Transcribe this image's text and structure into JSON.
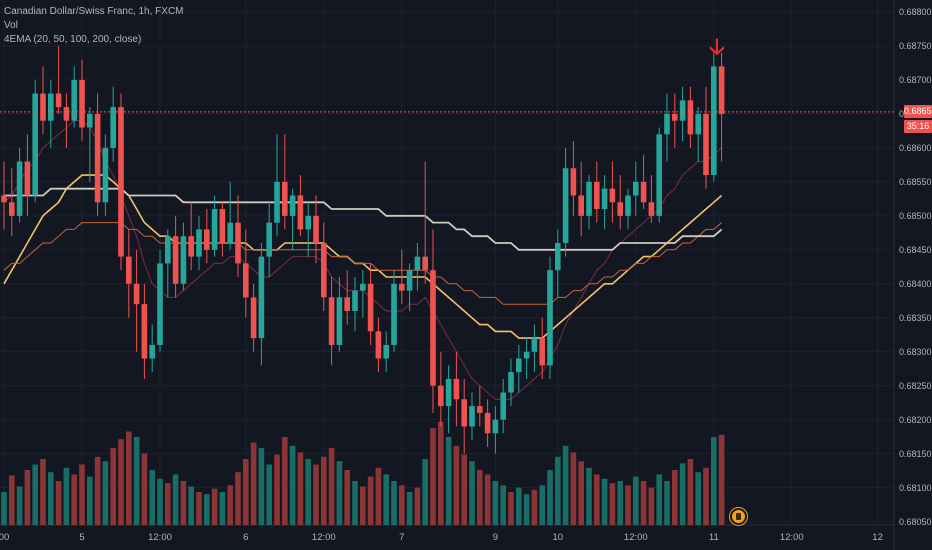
{
  "legend": {
    "symbol": "Canadian Dollar/Swiss Franc, 1h, FXCM",
    "volume": "Vol",
    "indicator": "4EMA (20, 50, 100, 200, close)"
  },
  "last_price_label": "0.68653",
  "countdown_label": "35:16",
  "colors": {
    "background": "#131722",
    "up": "#26a69a",
    "down": "#ef5350",
    "up_volume": "#1b7d73",
    "down_volume": "#a13b3b",
    "ema20": "#7b2c4a",
    "ema50": "#f5c26b",
    "ema100": "#c8643c",
    "ema200": "#cfcbbd",
    "price_line": "#ef5350",
    "arrow": "#ef2b2b",
    "event": "#f7a21b"
  },
  "icons": {
    "signal": "down-arrow-icon",
    "event": "economic-event-icon"
  },
  "chart_data": {
    "type": "candlestick",
    "ylim": [
      0.68045,
      0.688
    ],
    "y_ticks": [
      "0.68800",
      "0.68750",
      "0.68700",
      "0.68650",
      "0.68600",
      "0.68550",
      "0.68500",
      "0.68450",
      "0.68400",
      "0.68350",
      "0.68300",
      "0.68250",
      "0.68200",
      "0.68150",
      "0.68100",
      "0.68050"
    ],
    "x_ticks": [
      {
        "label": "00",
        "index": 0
      },
      {
        "label": "5",
        "index": 10
      },
      {
        "label": "12:00",
        "index": 20
      },
      {
        "label": "6",
        "index": 31
      },
      {
        "label": "12:00",
        "index": 41
      },
      {
        "label": "7",
        "index": 51
      },
      {
        "label": "9",
        "index": 63
      },
      {
        "label": "10",
        "index": 71
      },
      {
        "label": "12:00",
        "index": 81
      },
      {
        "label": "11",
        "index": 91
      },
      {
        "label": "12:00",
        "index": 101
      },
      {
        "label": "12",
        "index": 112
      }
    ],
    "last_price": 0.68653,
    "ohlc": [
      [
        0.6853,
        0.6858,
        0.6848,
        0.6852
      ],
      [
        0.6852,
        0.6857,
        0.6847,
        0.685
      ],
      [
        0.685,
        0.686,
        0.6849,
        0.6858
      ],
      [
        0.6858,
        0.6862,
        0.685,
        0.6853
      ],
      [
        0.6853,
        0.687,
        0.6852,
        0.6868
      ],
      [
        0.6868,
        0.6872,
        0.6862,
        0.6864
      ],
      [
        0.6864,
        0.687,
        0.686,
        0.6868
      ],
      [
        0.6868,
        0.6875,
        0.6865,
        0.6866
      ],
      [
        0.6866,
        0.6868,
        0.686,
        0.6864
      ],
      [
        0.6864,
        0.6872,
        0.6863,
        0.687
      ],
      [
        0.687,
        0.6873,
        0.6861,
        0.6863
      ],
      [
        0.6863,
        0.6866,
        0.6855,
        0.6865
      ],
      [
        0.6865,
        0.6868,
        0.685,
        0.6852
      ],
      [
        0.6852,
        0.6862,
        0.685,
        0.686
      ],
      [
        0.686,
        0.6869,
        0.6858,
        0.6866
      ],
      [
        0.6866,
        0.6868,
        0.6842,
        0.6844
      ],
      [
        0.6844,
        0.6848,
        0.6835,
        0.684
      ],
      [
        0.684,
        0.6845,
        0.683,
        0.6837
      ],
      [
        0.6837,
        0.684,
        0.6826,
        0.6829
      ],
      [
        0.6829,
        0.6834,
        0.6827,
        0.6831
      ],
      [
        0.6831,
        0.6845,
        0.683,
        0.6843
      ],
      [
        0.6843,
        0.6848,
        0.6838,
        0.6847
      ],
      [
        0.6847,
        0.685,
        0.6838,
        0.684
      ],
      [
        0.684,
        0.6849,
        0.6839,
        0.6847
      ],
      [
        0.6847,
        0.6852,
        0.6842,
        0.6844
      ],
      [
        0.6844,
        0.685,
        0.6842,
        0.6848
      ],
      [
        0.6848,
        0.6851,
        0.6843,
        0.6845
      ],
      [
        0.6845,
        0.6853,
        0.6844,
        0.6851
      ],
      [
        0.6851,
        0.6852,
        0.6844,
        0.6846
      ],
      [
        0.6846,
        0.6855,
        0.6845,
        0.6849
      ],
      [
        0.6849,
        0.6853,
        0.6841,
        0.6843
      ],
      [
        0.6843,
        0.6848,
        0.6835,
        0.6838
      ],
      [
        0.6838,
        0.684,
        0.683,
        0.6832
      ],
      [
        0.6832,
        0.6846,
        0.6828,
        0.6844
      ],
      [
        0.6844,
        0.6852,
        0.6841,
        0.6849
      ],
      [
        0.6849,
        0.6862,
        0.6847,
        0.6855
      ],
      [
        0.6855,
        0.6862,
        0.6848,
        0.685
      ],
      [
        0.685,
        0.6854,
        0.6845,
        0.6853
      ],
      [
        0.6853,
        0.6856,
        0.6847,
        0.6848
      ],
      [
        0.6848,
        0.6852,
        0.6844,
        0.685
      ],
      [
        0.685,
        0.6853,
        0.6843,
        0.6846
      ],
      [
        0.6846,
        0.6849,
        0.6836,
        0.6838
      ],
      [
        0.6838,
        0.6841,
        0.6828,
        0.6831
      ],
      [
        0.6831,
        0.6841,
        0.683,
        0.6838
      ],
      [
        0.6838,
        0.6842,
        0.6834,
        0.6836
      ],
      [
        0.6836,
        0.6841,
        0.6833,
        0.6839
      ],
      [
        0.6839,
        0.6842,
        0.6835,
        0.684
      ],
      [
        0.684,
        0.6843,
        0.6831,
        0.6833
      ],
      [
        0.6833,
        0.6835,
        0.6827,
        0.6829
      ],
      [
        0.6829,
        0.6833,
        0.6827,
        0.6831
      ],
      [
        0.6831,
        0.6842,
        0.683,
        0.684
      ],
      [
        0.684,
        0.6845,
        0.6837,
        0.6839
      ],
      [
        0.6839,
        0.6843,
        0.6836,
        0.6842
      ],
      [
        0.6842,
        0.6846,
        0.6839,
        0.6844
      ],
      [
        0.6844,
        0.6858,
        0.684,
        0.6842
      ],
      [
        0.6842,
        0.6848,
        0.6821,
        0.6825
      ],
      [
        0.6825,
        0.683,
        0.6819,
        0.6822
      ],
      [
        0.6822,
        0.6828,
        0.6818,
        0.6826
      ],
      [
        0.6826,
        0.683,
        0.6819,
        0.6823
      ],
      [
        0.6823,
        0.6826,
        0.6815,
        0.6819
      ],
      [
        0.6819,
        0.6824,
        0.6817,
        0.6822
      ],
      [
        0.6822,
        0.6825,
        0.6819,
        0.6821
      ],
      [
        0.6821,
        0.6823,
        0.6816,
        0.6818
      ],
      [
        0.6818,
        0.6822,
        0.6815,
        0.682
      ],
      [
        0.682,
        0.6826,
        0.6818,
        0.6824
      ],
      [
        0.6824,
        0.6829,
        0.6822,
        0.6827
      ],
      [
        0.6827,
        0.6831,
        0.6824,
        0.6829
      ],
      [
        0.6829,
        0.6832,
        0.6826,
        0.683
      ],
      [
        0.683,
        0.6834,
        0.6827,
        0.6832
      ],
      [
        0.6832,
        0.6835,
        0.6826,
        0.6828
      ],
      [
        0.6828,
        0.6844,
        0.6826,
        0.6842
      ],
      [
        0.6842,
        0.6848,
        0.6838,
        0.6846
      ],
      [
        0.6846,
        0.686,
        0.6844,
        0.6857
      ],
      [
        0.6857,
        0.6861,
        0.685,
        0.6853
      ],
      [
        0.6853,
        0.6858,
        0.6847,
        0.685
      ],
      [
        0.685,
        0.6856,
        0.6848,
        0.6855
      ],
      [
        0.6855,
        0.6858,
        0.6849,
        0.6851
      ],
      [
        0.6851,
        0.6856,
        0.6848,
        0.6854
      ],
      [
        0.6854,
        0.6858,
        0.6849,
        0.6852
      ],
      [
        0.6852,
        0.6856,
        0.6848,
        0.685
      ],
      [
        0.685,
        0.6854,
        0.6848,
        0.6853
      ],
      [
        0.6853,
        0.6858,
        0.685,
        0.6855
      ],
      [
        0.6855,
        0.6859,
        0.6851,
        0.6852
      ],
      [
        0.6852,
        0.6856,
        0.6849,
        0.685
      ],
      [
        0.685,
        0.6863,
        0.6849,
        0.6862
      ],
      [
        0.6862,
        0.6868,
        0.6858,
        0.6865
      ],
      [
        0.6865,
        0.6868,
        0.686,
        0.6864
      ],
      [
        0.6864,
        0.6869,
        0.6861,
        0.6867
      ],
      [
        0.6867,
        0.6869,
        0.686,
        0.6862
      ],
      [
        0.6862,
        0.6866,
        0.6858,
        0.6865
      ],
      [
        0.6865,
        0.6869,
        0.6854,
        0.6856
      ],
      [
        0.6856,
        0.6874,
        0.6855,
        0.6872
      ],
      [
        0.6872,
        0.6874,
        0.6858,
        0.6865
      ]
    ],
    "volume": [
      [
        0.3,
        1
      ],
      [
        0.45,
        0
      ],
      [
        0.35,
        1
      ],
      [
        0.5,
        0
      ],
      [
        0.55,
        1
      ],
      [
        0.6,
        0
      ],
      [
        0.48,
        1
      ],
      [
        0.4,
        0
      ],
      [
        0.52,
        1
      ],
      [
        0.46,
        0
      ],
      [
        0.55,
        0
      ],
      [
        0.44,
        1
      ],
      [
        0.62,
        0
      ],
      [
        0.58,
        1
      ],
      [
        0.7,
        0
      ],
      [
        0.78,
        0
      ],
      [
        0.85,
        0
      ],
      [
        0.8,
        1
      ],
      [
        0.65,
        0
      ],
      [
        0.5,
        1
      ],
      [
        0.42,
        1
      ],
      [
        0.38,
        0
      ],
      [
        0.46,
        1
      ],
      [
        0.4,
        0
      ],
      [
        0.35,
        1
      ],
      [
        0.3,
        0
      ],
      [
        0.28,
        1
      ],
      [
        0.33,
        0
      ],
      [
        0.3,
        1
      ],
      [
        0.36,
        0
      ],
      [
        0.48,
        0
      ],
      [
        0.6,
        0
      ],
      [
        0.75,
        0
      ],
      [
        0.7,
        1
      ],
      [
        0.55,
        1
      ],
      [
        0.64,
        0
      ],
      [
        0.8,
        0
      ],
      [
        0.72,
        1
      ],
      [
        0.66,
        0
      ],
      [
        0.6,
        1
      ],
      [
        0.55,
        0
      ],
      [
        0.62,
        0
      ],
      [
        0.7,
        0
      ],
      [
        0.58,
        1
      ],
      [
        0.5,
        0
      ],
      [
        0.4,
        1
      ],
      [
        0.35,
        0
      ],
      [
        0.44,
        0
      ],
      [
        0.52,
        0
      ],
      [
        0.46,
        1
      ],
      [
        0.4,
        1
      ],
      [
        0.36,
        0
      ],
      [
        0.3,
        1
      ],
      [
        0.34,
        0
      ],
      [
        0.6,
        1
      ],
      [
        0.88,
        0
      ],
      [
        0.94,
        0
      ],
      [
        0.8,
        1
      ],
      [
        0.72,
        0
      ],
      [
        0.64,
        0
      ],
      [
        0.58,
        1
      ],
      [
        0.5,
        0
      ],
      [
        0.46,
        0
      ],
      [
        0.4,
        1
      ],
      [
        0.36,
        1
      ],
      [
        0.3,
        0
      ],
      [
        0.34,
        1
      ],
      [
        0.28,
        1
      ],
      [
        0.32,
        0
      ],
      [
        0.36,
        1
      ],
      [
        0.5,
        1
      ],
      [
        0.62,
        1
      ],
      [
        0.72,
        1
      ],
      [
        0.66,
        0
      ],
      [
        0.58,
        0
      ],
      [
        0.52,
        1
      ],
      [
        0.46,
        0
      ],
      [
        0.42,
        1
      ],
      [
        0.38,
        0
      ],
      [
        0.4,
        1
      ],
      [
        0.36,
        0
      ],
      [
        0.44,
        1
      ],
      [
        0.4,
        0
      ],
      [
        0.34,
        0
      ],
      [
        0.46,
        1
      ],
      [
        0.4,
        1
      ],
      [
        0.5,
        0
      ],
      [
        0.56,
        1
      ],
      [
        0.6,
        0
      ],
      [
        0.48,
        1
      ],
      [
        0.52,
        0
      ],
      [
        0.8,
        1
      ],
      [
        0.82,
        0
      ]
    ],
    "ema": [
      {
        "period": 20,
        "values": [
          0.6852,
          0.6853,
          0.6855,
          0.6857,
          0.6858,
          0.686,
          0.6861,
          0.6862,
          0.6863,
          0.6864,
          0.6864,
          0.6863,
          0.6861,
          0.6858,
          0.6856,
          0.6853,
          0.685,
          0.6847,
          0.6843,
          0.684,
          0.6839,
          0.6838,
          0.6838,
          0.6839,
          0.684,
          0.6841,
          0.6842,
          0.6843,
          0.6843,
          0.6844,
          0.6844,
          0.6843,
          0.6842,
          0.6841,
          0.6841,
          0.6842,
          0.6843,
          0.6844,
          0.6844,
          0.6844,
          0.6844,
          0.6843,
          0.6841,
          0.684,
          0.6839,
          0.6839,
          0.6839,
          0.6838,
          0.6837,
          0.6836,
          0.6836,
          0.6836,
          0.6837,
          0.6837,
          0.6838,
          0.6836,
          0.6834,
          0.6832,
          0.683,
          0.6828,
          0.6826,
          0.6825,
          0.6824,
          0.6823,
          0.6823,
          0.6823,
          0.6824,
          0.6825,
          0.6826,
          0.6827,
          0.6829,
          0.6831,
          0.6834,
          0.6836,
          0.6838,
          0.684,
          0.6842,
          0.6843,
          0.6845,
          0.6846,
          0.6847,
          0.6848,
          0.6849,
          0.685,
          0.6851,
          0.6853,
          0.6854,
          0.6856,
          0.6857,
          0.6858,
          0.6858,
          0.6859,
          0.686
        ]
      },
      {
        "period": 50,
        "values": [
          0.684,
          0.6842,
          0.6844,
          0.6846,
          0.6848,
          0.685,
          0.6851,
          0.6852,
          0.6854,
          0.6855,
          0.6856,
          0.6856,
          0.6856,
          0.6856,
          0.6855,
          0.6854,
          0.6853,
          0.6851,
          0.6849,
          0.6848,
          0.6847,
          0.6847,
          0.6846,
          0.6846,
          0.6846,
          0.6846,
          0.6846,
          0.6846,
          0.6846,
          0.6846,
          0.6846,
          0.6846,
          0.6845,
          0.6845,
          0.6845,
          0.6845,
          0.6846,
          0.6846,
          0.6846,
          0.6846,
          0.6846,
          0.6846,
          0.6845,
          0.6844,
          0.6844,
          0.6843,
          0.6843,
          0.6842,
          0.6842,
          0.6841,
          0.6841,
          0.6841,
          0.6841,
          0.6841,
          0.6841,
          0.684,
          0.6839,
          0.6838,
          0.6837,
          0.6836,
          0.6835,
          0.6834,
          0.6834,
          0.6833,
          0.6833,
          0.6833,
          0.6832,
          0.6832,
          0.6832,
          0.6832,
          0.6833,
          0.6834,
          0.6835,
          0.6836,
          0.6837,
          0.6838,
          0.6839,
          0.684,
          0.684,
          0.6841,
          0.6842,
          0.6843,
          0.6844,
          0.6844,
          0.6845,
          0.6846,
          0.6847,
          0.6848,
          0.6849,
          0.685,
          0.6851,
          0.6852,
          0.6853
        ]
      },
      {
        "period": 100,
        "values": [
          0.6842,
          0.6843,
          0.6843,
          0.6844,
          0.6845,
          0.6846,
          0.6846,
          0.6847,
          0.6848,
          0.6848,
          0.6849,
          0.6849,
          0.6849,
          0.6849,
          0.6849,
          0.6849,
          0.6848,
          0.6848,
          0.6847,
          0.6847,
          0.6846,
          0.6846,
          0.6846,
          0.6846,
          0.6846,
          0.6846,
          0.6846,
          0.6846,
          0.6846,
          0.6846,
          0.6846,
          0.6845,
          0.6845,
          0.6845,
          0.6845,
          0.6845,
          0.6845,
          0.6845,
          0.6845,
          0.6845,
          0.6845,
          0.6845,
          0.6844,
          0.6844,
          0.6844,
          0.6843,
          0.6843,
          0.6843,
          0.6842,
          0.6842,
          0.6842,
          0.6842,
          0.6842,
          0.6842,
          0.6842,
          0.6841,
          0.6841,
          0.684,
          0.684,
          0.6839,
          0.6839,
          0.6838,
          0.6838,
          0.6838,
          0.6837,
          0.6837,
          0.6837,
          0.6837,
          0.6837,
          0.6837,
          0.6837,
          0.6838,
          0.6838,
          0.6839,
          0.6839,
          0.684,
          0.684,
          0.6841,
          0.6841,
          0.6842,
          0.6842,
          0.6843,
          0.6843,
          0.6844,
          0.6844,
          0.6845,
          0.6845,
          0.6846,
          0.6846,
          0.6847,
          0.6848,
          0.6848,
          0.6849
        ]
      },
      {
        "period": 200,
        "values": [
          0.6853,
          0.6853,
          0.6853,
          0.6853,
          0.6853,
          0.6853,
          0.6854,
          0.6854,
          0.6854,
          0.6854,
          0.6854,
          0.6854,
          0.6854,
          0.6854,
          0.6854,
          0.6854,
          0.6853,
          0.6853,
          0.6853,
          0.6853,
          0.6853,
          0.6853,
          0.6853,
          0.6852,
          0.6852,
          0.6852,
          0.6852,
          0.6852,
          0.6852,
          0.6852,
          0.6852,
          0.6852,
          0.6852,
          0.6852,
          0.6852,
          0.6852,
          0.6852,
          0.6852,
          0.6852,
          0.6852,
          0.6852,
          0.6852,
          0.6851,
          0.6851,
          0.6851,
          0.6851,
          0.6851,
          0.6851,
          0.6851,
          0.685,
          0.685,
          0.685,
          0.685,
          0.685,
          0.685,
          0.6849,
          0.6849,
          0.6849,
          0.6848,
          0.6848,
          0.6847,
          0.6847,
          0.6847,
          0.6846,
          0.6846,
          0.6846,
          0.6845,
          0.6845,
          0.6845,
          0.6845,
          0.6845,
          0.6845,
          0.6845,
          0.6845,
          0.6845,
          0.6845,
          0.6845,
          0.6845,
          0.6845,
          0.6846,
          0.6846,
          0.6846,
          0.6846,
          0.6846,
          0.6846,
          0.6846,
          0.6846,
          0.6847,
          0.6847,
          0.6847,
          0.6847,
          0.6847,
          0.6848
        ]
      }
    ]
  }
}
